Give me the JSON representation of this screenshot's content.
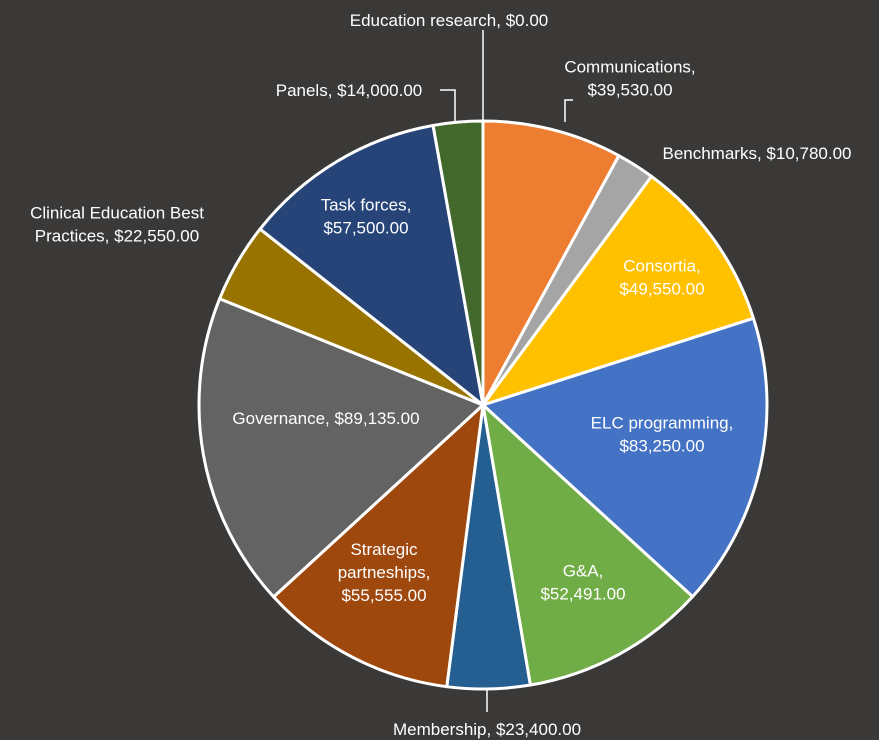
{
  "chart_data": {
    "type": "pie",
    "title": "",
    "background": "#3a3938",
    "slice_border": "#ffffff",
    "slices": [
      {
        "name": "Education research",
        "label_lines": [
          "Education research, $0.00"
        ],
        "value": 0,
        "color": "#a5a5a5"
      },
      {
        "name": "Communications",
        "label_lines": [
          "Communications,",
          "$39,530.00"
        ],
        "value": 39530,
        "color": "#ed7d31"
      },
      {
        "name": "Benchmarks",
        "label_lines": [
          "Benchmarks, $10,780.00"
        ],
        "value": 10780,
        "color": "#a5a5a5"
      },
      {
        "name": "Consortia",
        "label_lines": [
          "Consortia,",
          "$49,550.00"
        ],
        "value": 49550,
        "color": "#ffc000"
      },
      {
        "name": "ELC programming",
        "label_lines": [
          "ELC programming,",
          "$83,250.00"
        ],
        "value": 83250,
        "color": "#4472c4"
      },
      {
        "name": "G&A",
        "label_lines": [
          "G&A,",
          "$52,491.00"
        ],
        "value": 52491,
        "color": "#70ad47"
      },
      {
        "name": "Membership",
        "label_lines": [
          "Membership, $23,400.00"
        ],
        "value": 23400,
        "color": "#255e91"
      },
      {
        "name": "Strategic partneships",
        "label_lines": [
          "Strategic",
          "partneships,",
          "$55,555.00"
        ],
        "value": 55555,
        "color": "#9e480e"
      },
      {
        "name": "Governance",
        "label_lines": [
          "Governance, $89,135.00"
        ],
        "value": 89135,
        "color": "#636363"
      },
      {
        "name": "Clinical Education Best Practices",
        "label_lines": [
          "Clinical Education Best",
          "Practices, $22,550.00"
        ],
        "value": 22550,
        "color": "#997300"
      },
      {
        "name": "Task forces",
        "label_lines": [
          "Task forces,",
          "$57,500.00"
        ],
        "value": 57500,
        "color": "#264478"
      },
      {
        "name": "Panels",
        "label_lines": [
          "Panels, $14,000.00"
        ],
        "value": 14000,
        "color": "#43682b"
      }
    ],
    "legend": "none"
  }
}
